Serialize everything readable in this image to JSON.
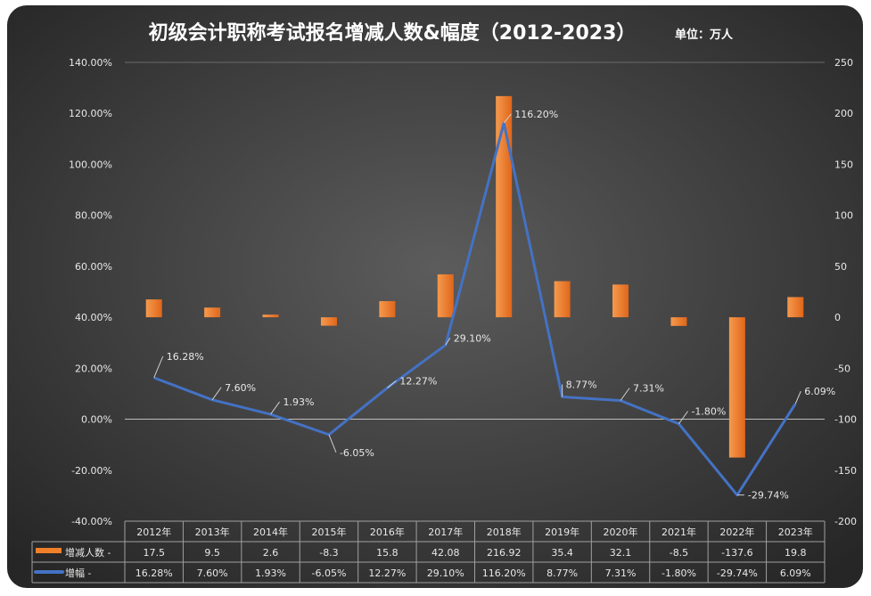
{
  "chart_data": {
    "type": "bar+line",
    "title": "初级会计职称考试报名增减人数&幅度（2012-2023）",
    "subtitle": "单位：万人",
    "categories": [
      "2012年",
      "2013年",
      "2014年",
      "2015年",
      "2016年",
      "2017年",
      "2018年",
      "2019年",
      "2020年",
      "2021年",
      "2022年",
      "2023年"
    ],
    "series": [
      {
        "name": "增减人数",
        "type": "bar",
        "axis": "right",
        "color": "#f07f2a",
        "values": [
          17.5,
          9.5,
          2.6,
          -8.3,
          15.8,
          42.08,
          216.92,
          35.4,
          32.1,
          -8.5,
          -137.6,
          19.8
        ],
        "labels": [
          "17.5",
          "9.5",
          "2.6",
          "-8.3",
          "15.8",
          "42.08",
          "216.92",
          "35.4",
          "32.1",
          "-8.5",
          "-137.6",
          "19.8"
        ]
      },
      {
        "name": "增幅",
        "type": "line",
        "axis": "left",
        "color": "#4472c4",
        "values": [
          16.28,
          7.6,
          1.93,
          -6.05,
          12.27,
          29.1,
          116.2,
          8.77,
          7.31,
          -1.8,
          -29.74,
          6.09
        ],
        "labels": [
          "16.28%",
          "7.60%",
          "1.93%",
          "-6.05%",
          "12.27%",
          "29.10%",
          "116.20%",
          "8.77%",
          "7.31%",
          "-1.80%",
          "-29.74%",
          "6.09%"
        ]
      }
    ],
    "left_axis": {
      "range": [
        -40,
        140
      ],
      "step": 20,
      "ticks": [
        "140.00%",
        "120.00%",
        "100.00%",
        "80.00%",
        "60.00%",
        "40.00%",
        "20.00%",
        "0.00%",
        "-20.00%",
        "-40.00%"
      ]
    },
    "right_axis": {
      "range": [
        -200,
        250
      ],
      "step": 50,
      "ticks": [
        "250",
        "200",
        "150",
        "100",
        "50",
        "0",
        "-50",
        "-100",
        "-150",
        "-200"
      ]
    },
    "grid": false,
    "legend": "data-table",
    "table_suffix": " -"
  }
}
